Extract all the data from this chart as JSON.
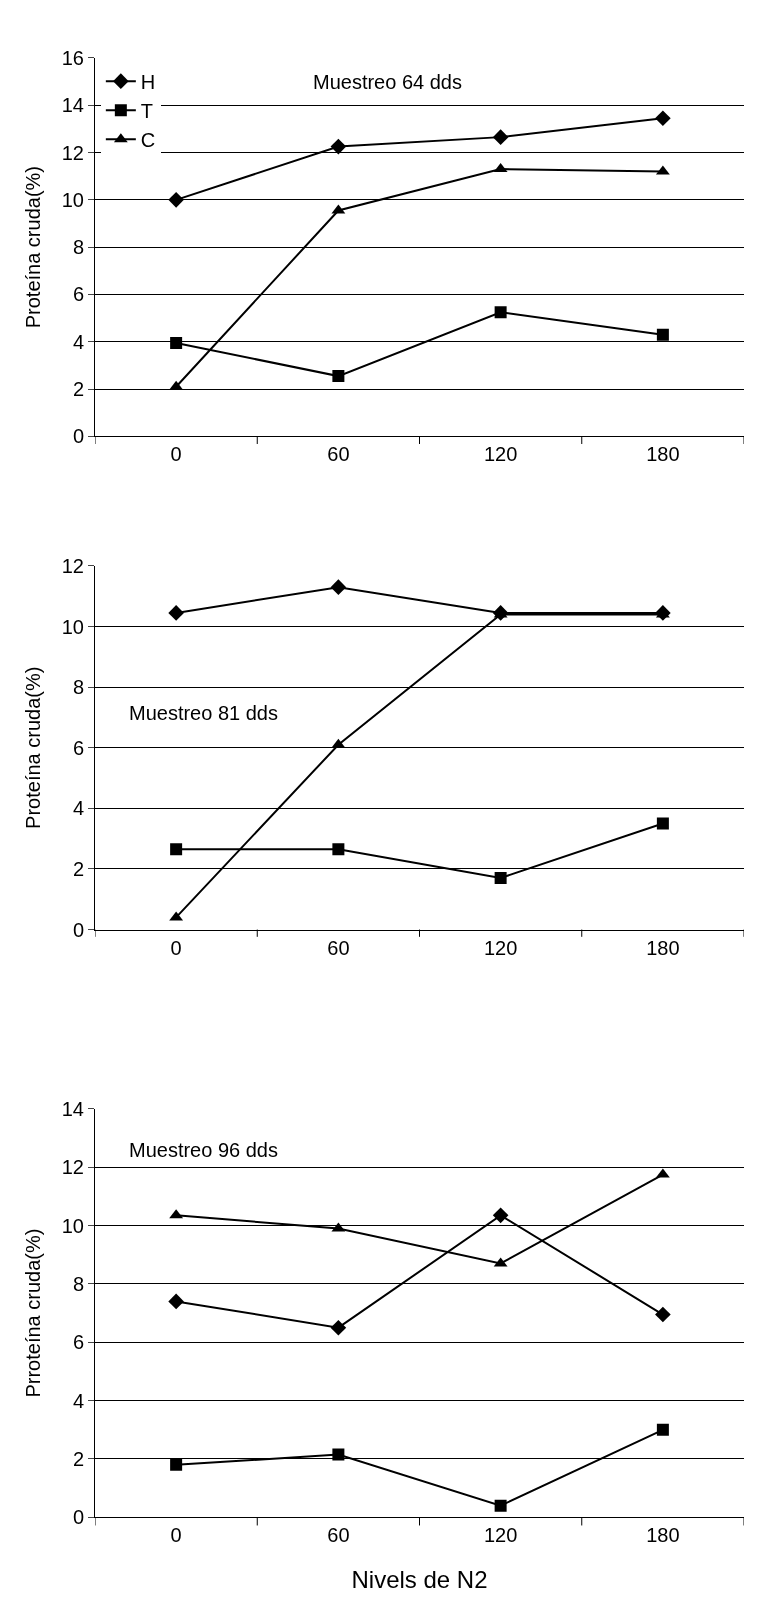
{
  "chart_data": [
    {
      "type": "line",
      "ylabel": "Proteína cruda(%)",
      "annotations": [
        "Muestreo 64 dds"
      ],
      "categories": [
        "0",
        "60",
        "120",
        "180"
      ],
      "ylim": [
        0,
        16
      ],
      "yticks": [
        0,
        2,
        4,
        6,
        8,
        10,
        12,
        14,
        16
      ],
      "grid": "y",
      "legend": "top left",
      "line_style": "solid",
      "series": [
        {
          "name": "H",
          "color": "#000000",
          "marker": "diamond",
          "values": [
            10,
            12.25,
            12.65,
            13.45
          ]
        },
        {
          "name": "T",
          "color": "#000000",
          "marker": "square",
          "values": [
            3.95,
            2.55,
            5.25,
            4.3
          ]
        },
        {
          "name": "C",
          "color": "#000000",
          "marker": "triangle",
          "values": [
            2.1,
            9.55,
            11.3,
            11.2
          ]
        }
      ]
    },
    {
      "type": "line",
      "ylabel": "Proteína cruda(%)",
      "annotations": [
        "Muestreo 81 dds"
      ],
      "categories": [
        "0",
        "60",
        "120",
        "180"
      ],
      "ylim": [
        0,
        12
      ],
      "yticks": [
        0,
        2,
        4,
        6,
        8,
        10,
        12
      ],
      "grid": "y",
      "line_style": "solid",
      "series": [
        {
          "color": "#000000",
          "marker": "diamond",
          "values": [
            10.45,
            11.3,
            10.45,
            10.45
          ]
        },
        {
          "color": "#000000",
          "marker": "square",
          "values": [
            2.65,
            2.65,
            1.7,
            3.5
          ]
        },
        {
          "color": "#000000",
          "marker": "triangle",
          "values": [
            0.4,
            6.1,
            10.4,
            10.4
          ]
        }
      ]
    },
    {
      "type": "line",
      "ylabel": "Prroteína cruda(%)",
      "xlabel": "Nivels de N2",
      "annotations": [
        "Muestreo 96 dds"
      ],
      "categories": [
        "0",
        "60",
        "120",
        "180"
      ],
      "ylim": [
        0,
        14
      ],
      "yticks": [
        0,
        2,
        4,
        6,
        8,
        10,
        12,
        14
      ],
      "grid": "y",
      "line_style": "solid",
      "series": [
        {
          "color": "#000000",
          "marker": "diamond",
          "values": [
            7.4,
            6.5,
            10.35,
            6.95
          ]
        },
        {
          "color": "#000000",
          "marker": "square",
          "values": [
            1.8,
            2.15,
            0.4,
            3.0
          ]
        },
        {
          "color": "#000000",
          "marker": "triangle",
          "values": [
            10.35,
            9.9,
            8.7,
            11.75
          ]
        }
      ]
    }
  ]
}
